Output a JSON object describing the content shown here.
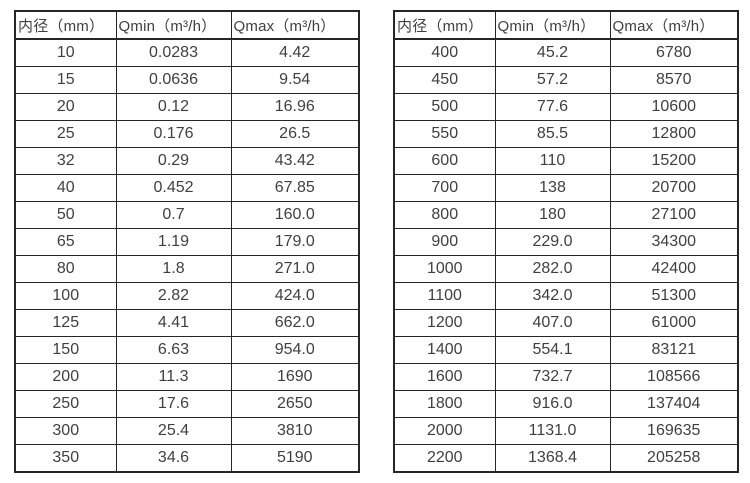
{
  "left_table": {
    "headers": [
      "内径（mm）",
      "Qmin（m³/h）",
      "Qmax（m³/h）"
    ],
    "rows": [
      [
        "10",
        "0.0283",
        "4.42"
      ],
      [
        "15",
        "0.0636",
        "9.54"
      ],
      [
        "20",
        "0.12",
        "16.96"
      ],
      [
        "25",
        "0.176",
        "26.5"
      ],
      [
        "32",
        "0.29",
        "43.42"
      ],
      [
        "40",
        "0.452",
        "67.85"
      ],
      [
        "50",
        "0.7",
        "160.0"
      ],
      [
        "65",
        "1.19",
        "179.0"
      ],
      [
        "80",
        "1.8",
        "271.0"
      ],
      [
        "100",
        "2.82",
        "424.0"
      ],
      [
        "125",
        "4.41",
        "662.0"
      ],
      [
        "150",
        "6.63",
        "954.0"
      ],
      [
        "200",
        "11.3",
        "1690"
      ],
      [
        "250",
        "17.6",
        "2650"
      ],
      [
        "300",
        "25.4",
        "3810"
      ],
      [
        "350",
        "34.6",
        "5190"
      ]
    ]
  },
  "right_table": {
    "headers": [
      "内径（mm）",
      "Qmin（m³/h）",
      "Qmax（m³/h）"
    ],
    "rows": [
      [
        "400",
        "45.2",
        "6780"
      ],
      [
        "450",
        "57.2",
        "8570"
      ],
      [
        "500",
        "77.6",
        "10600"
      ],
      [
        "550",
        "85.5",
        "12800"
      ],
      [
        "600",
        "110",
        "15200"
      ],
      [
        "700",
        "138",
        "20700"
      ],
      [
        "800",
        "180",
        "27100"
      ],
      [
        "900",
        "229.0",
        "34300"
      ],
      [
        "1000",
        "282.0",
        "42400"
      ],
      [
        "1100",
        "342.0",
        "51300"
      ],
      [
        "1200",
        "407.0",
        "61000"
      ],
      [
        "1400",
        "554.1",
        "83121"
      ],
      [
        "1600",
        "732.7",
        "108566"
      ],
      [
        "1800",
        "916.0",
        "137404"
      ],
      [
        "2000",
        "1131.0",
        "169635"
      ],
      [
        "2200",
        "1368.4",
        "205258"
      ]
    ]
  },
  "colors": {
    "text": "#3f3f3f",
    "border": "#262626",
    "background": "#ffffff"
  },
  "chart_data": {
    "type": "table",
    "title": "",
    "series": [
      {
        "name": "left-table",
        "columns": [
          "内径（mm）",
          "Qmin（m³/h）",
          "Qmax（m³/h）"
        ],
        "diameter_mm": [
          10,
          15,
          20,
          25,
          32,
          40,
          50,
          65,
          80,
          100,
          125,
          150,
          200,
          250,
          300,
          350
        ],
        "qmin_m3h": [
          0.0283,
          0.0636,
          0.12,
          0.176,
          0.29,
          0.452,
          0.7,
          1.19,
          1.8,
          2.82,
          4.41,
          6.63,
          11.3,
          17.6,
          25.4,
          34.6
        ],
        "qmax_m3h": [
          4.42,
          9.54,
          16.96,
          26.5,
          43.42,
          67.85,
          160.0,
          179.0,
          271.0,
          424.0,
          662.0,
          954.0,
          1690,
          2650,
          3810,
          5190
        ]
      },
      {
        "name": "right-table",
        "columns": [
          "内径（mm）",
          "Qmin（m³/h）",
          "Qmax（m³/h）"
        ],
        "diameter_mm": [
          400,
          450,
          500,
          550,
          600,
          700,
          800,
          900,
          1000,
          1100,
          1200,
          1400,
          1600,
          1800,
          2000,
          2200
        ],
        "qmin_m3h": [
          45.2,
          57.2,
          77.6,
          85.5,
          110,
          138,
          180,
          229.0,
          282.0,
          342.0,
          407.0,
          554.1,
          732.7,
          916.0,
          1131.0,
          1368.4
        ],
        "qmax_m3h": [
          6780,
          8570,
          10600,
          12800,
          15200,
          20700,
          27100,
          34300,
          42400,
          51300,
          61000,
          83121,
          108566,
          137404,
          169635,
          205258
        ]
      }
    ]
  }
}
